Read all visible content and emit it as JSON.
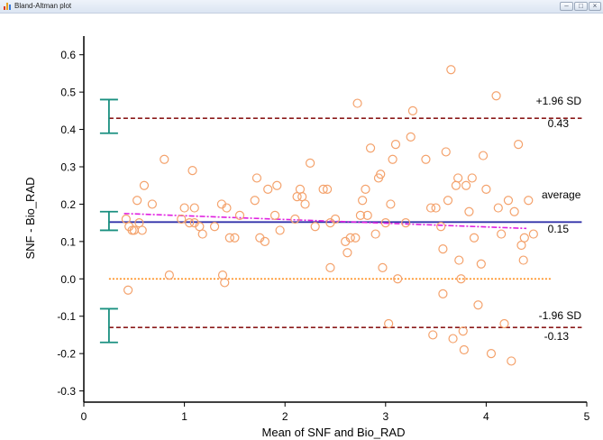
{
  "window": {
    "title": "Bland-Altman plot"
  },
  "colors": {
    "sd_line": "#8b1a1a",
    "mean_line": "#3333aa",
    "zero_line": "#ff8c1a",
    "trend_line": "#e020e0",
    "points": "#f4a26c",
    "ci_bars": "#1a9080"
  },
  "chart_data": {
    "type": "scatter",
    "xlabel": "Mean of SNF and Bio_RAD",
    "ylabel": "SNF - Bio_RAD",
    "xlim": [
      0,
      5
    ],
    "ylim": [
      -0.33,
      0.65
    ],
    "xticks": [
      0,
      1,
      2,
      3,
      4,
      5
    ],
    "yticks": [
      -0.3,
      -0.2,
      -0.1,
      0.0,
      0.1,
      0.2,
      0.3,
      0.4,
      0.5,
      0.6
    ],
    "grid": false,
    "lines": {
      "upper_sd": {
        "label": "+1.96 SD",
        "value_label": "0.43",
        "y": 0.43
      },
      "mean": {
        "label": "average",
        "value_label": "0.15",
        "y": 0.152
      },
      "lower_sd": {
        "label": "-1.96 SD",
        "value_label": "-0.13",
        "y": -0.13
      },
      "zero": {
        "y": 0.0
      },
      "trend": {
        "x": [
          0.4,
          4.4
        ],
        "y": [
          0.175,
          0.135
        ]
      }
    },
    "ci_bars": [
      {
        "x": 0.25,
        "low": 0.39,
        "high": 0.48
      },
      {
        "x": 0.25,
        "low": 0.13,
        "high": 0.18
      },
      {
        "x": 0.25,
        "low": -0.17,
        "high": -0.08
      }
    ],
    "points": [
      [
        0.42,
        0.16
      ],
      [
        0.44,
        -0.03
      ],
      [
        0.45,
        0.14
      ],
      [
        0.48,
        0.13
      ],
      [
        0.5,
        0.13
      ],
      [
        0.53,
        0.21
      ],
      [
        0.55,
        0.15
      ],
      [
        0.58,
        0.13
      ],
      [
        0.6,
        0.25
      ],
      [
        0.68,
        0.2
      ],
      [
        0.8,
        0.32
      ],
      [
        0.85,
        0.01
      ],
      [
        0.97,
        0.16
      ],
      [
        1.0,
        0.19
      ],
      [
        1.05,
        0.15
      ],
      [
        1.08,
        0.29
      ],
      [
        1.1,
        0.19
      ],
      [
        1.15,
        0.14
      ],
      [
        1.18,
        0.12
      ],
      [
        1.3,
        0.14
      ],
      [
        1.37,
        0.2
      ],
      [
        1.38,
        0.01
      ],
      [
        1.4,
        -0.01
      ],
      [
        1.42,
        0.19
      ],
      [
        1.45,
        0.11
      ],
      [
        1.5,
        0.11
      ],
      [
        1.55,
        0.17
      ],
      [
        1.7,
        0.21
      ],
      [
        1.72,
        0.27
      ],
      [
        1.75,
        0.11
      ],
      [
        1.8,
        0.1
      ],
      [
        1.83,
        0.24
      ],
      [
        1.9,
        0.17
      ],
      [
        1.92,
        0.25
      ],
      [
        1.95,
        0.13
      ],
      [
        2.1,
        0.16
      ],
      [
        2.12,
        0.22
      ],
      [
        2.15,
        0.24
      ],
      [
        2.17,
        0.22
      ],
      [
        2.2,
        0.2
      ],
      [
        2.25,
        0.31
      ],
      [
        2.3,
        0.14
      ],
      [
        2.38,
        0.24
      ],
      [
        2.42,
        0.24
      ],
      [
        2.45,
        0.03
      ],
      [
        2.5,
        0.16
      ],
      [
        2.6,
        0.1
      ],
      [
        2.62,
        0.07
      ],
      [
        2.65,
        0.11
      ],
      [
        2.7,
        0.11
      ],
      [
        2.72,
        0.47
      ],
      [
        2.75,
        0.17
      ],
      [
        2.77,
        0.21
      ],
      [
        2.8,
        0.24
      ],
      [
        2.82,
        0.17
      ],
      [
        2.85,
        0.35
      ],
      [
        2.9,
        0.12
      ],
      [
        2.93,
        0.27
      ],
      [
        2.95,
        0.28
      ],
      [
        2.97,
        0.03
      ],
      [
        3.0,
        0.15
      ],
      [
        3.05,
        0.2
      ],
      [
        3.07,
        0.32
      ],
      [
        3.1,
        0.36
      ],
      [
        3.12,
        0.0
      ],
      [
        3.2,
        0.15
      ],
      [
        3.25,
        0.38
      ],
      [
        3.27,
        0.45
      ],
      [
        3.4,
        0.32
      ],
      [
        3.45,
        0.19
      ],
      [
        3.47,
        -0.15
      ],
      [
        3.5,
        0.19
      ],
      [
        3.55,
        0.14
      ],
      [
        3.57,
        0.08
      ],
      [
        3.6,
        0.34
      ],
      [
        3.62,
        0.21
      ],
      [
        3.65,
        0.56
      ],
      [
        3.67,
        -0.16
      ],
      [
        3.7,
        0.25
      ],
      [
        3.72,
        0.27
      ],
      [
        3.73,
        0.05
      ],
      [
        3.75,
        0.0
      ],
      [
        3.77,
        -0.14
      ],
      [
        3.78,
        -0.19
      ],
      [
        3.8,
        0.25
      ],
      [
        3.83,
        0.18
      ],
      [
        3.86,
        0.27
      ],
      [
        3.88,
        0.11
      ],
      [
        3.92,
        -0.07
      ],
      [
        3.95,
        0.04
      ],
      [
        3.97,
        0.33
      ],
      [
        4.0,
        0.24
      ],
      [
        4.05,
        -0.2
      ],
      [
        4.1,
        0.49
      ],
      [
        4.12,
        0.19
      ],
      [
        4.15,
        0.12
      ],
      [
        4.18,
        -0.12
      ],
      [
        4.22,
        0.21
      ],
      [
        4.25,
        -0.22
      ],
      [
        4.28,
        0.18
      ],
      [
        4.32,
        0.36
      ],
      [
        4.35,
        0.09
      ],
      [
        4.37,
        0.05
      ],
      [
        4.38,
        0.11
      ],
      [
        4.42,
        0.21
      ],
      [
        4.47,
        0.12
      ],
      [
        3.57,
        -0.04
      ],
      [
        3.03,
        -0.12
      ],
      [
        2.45,
        0.15
      ],
      [
        1.1,
        0.15
      ]
    ]
  }
}
